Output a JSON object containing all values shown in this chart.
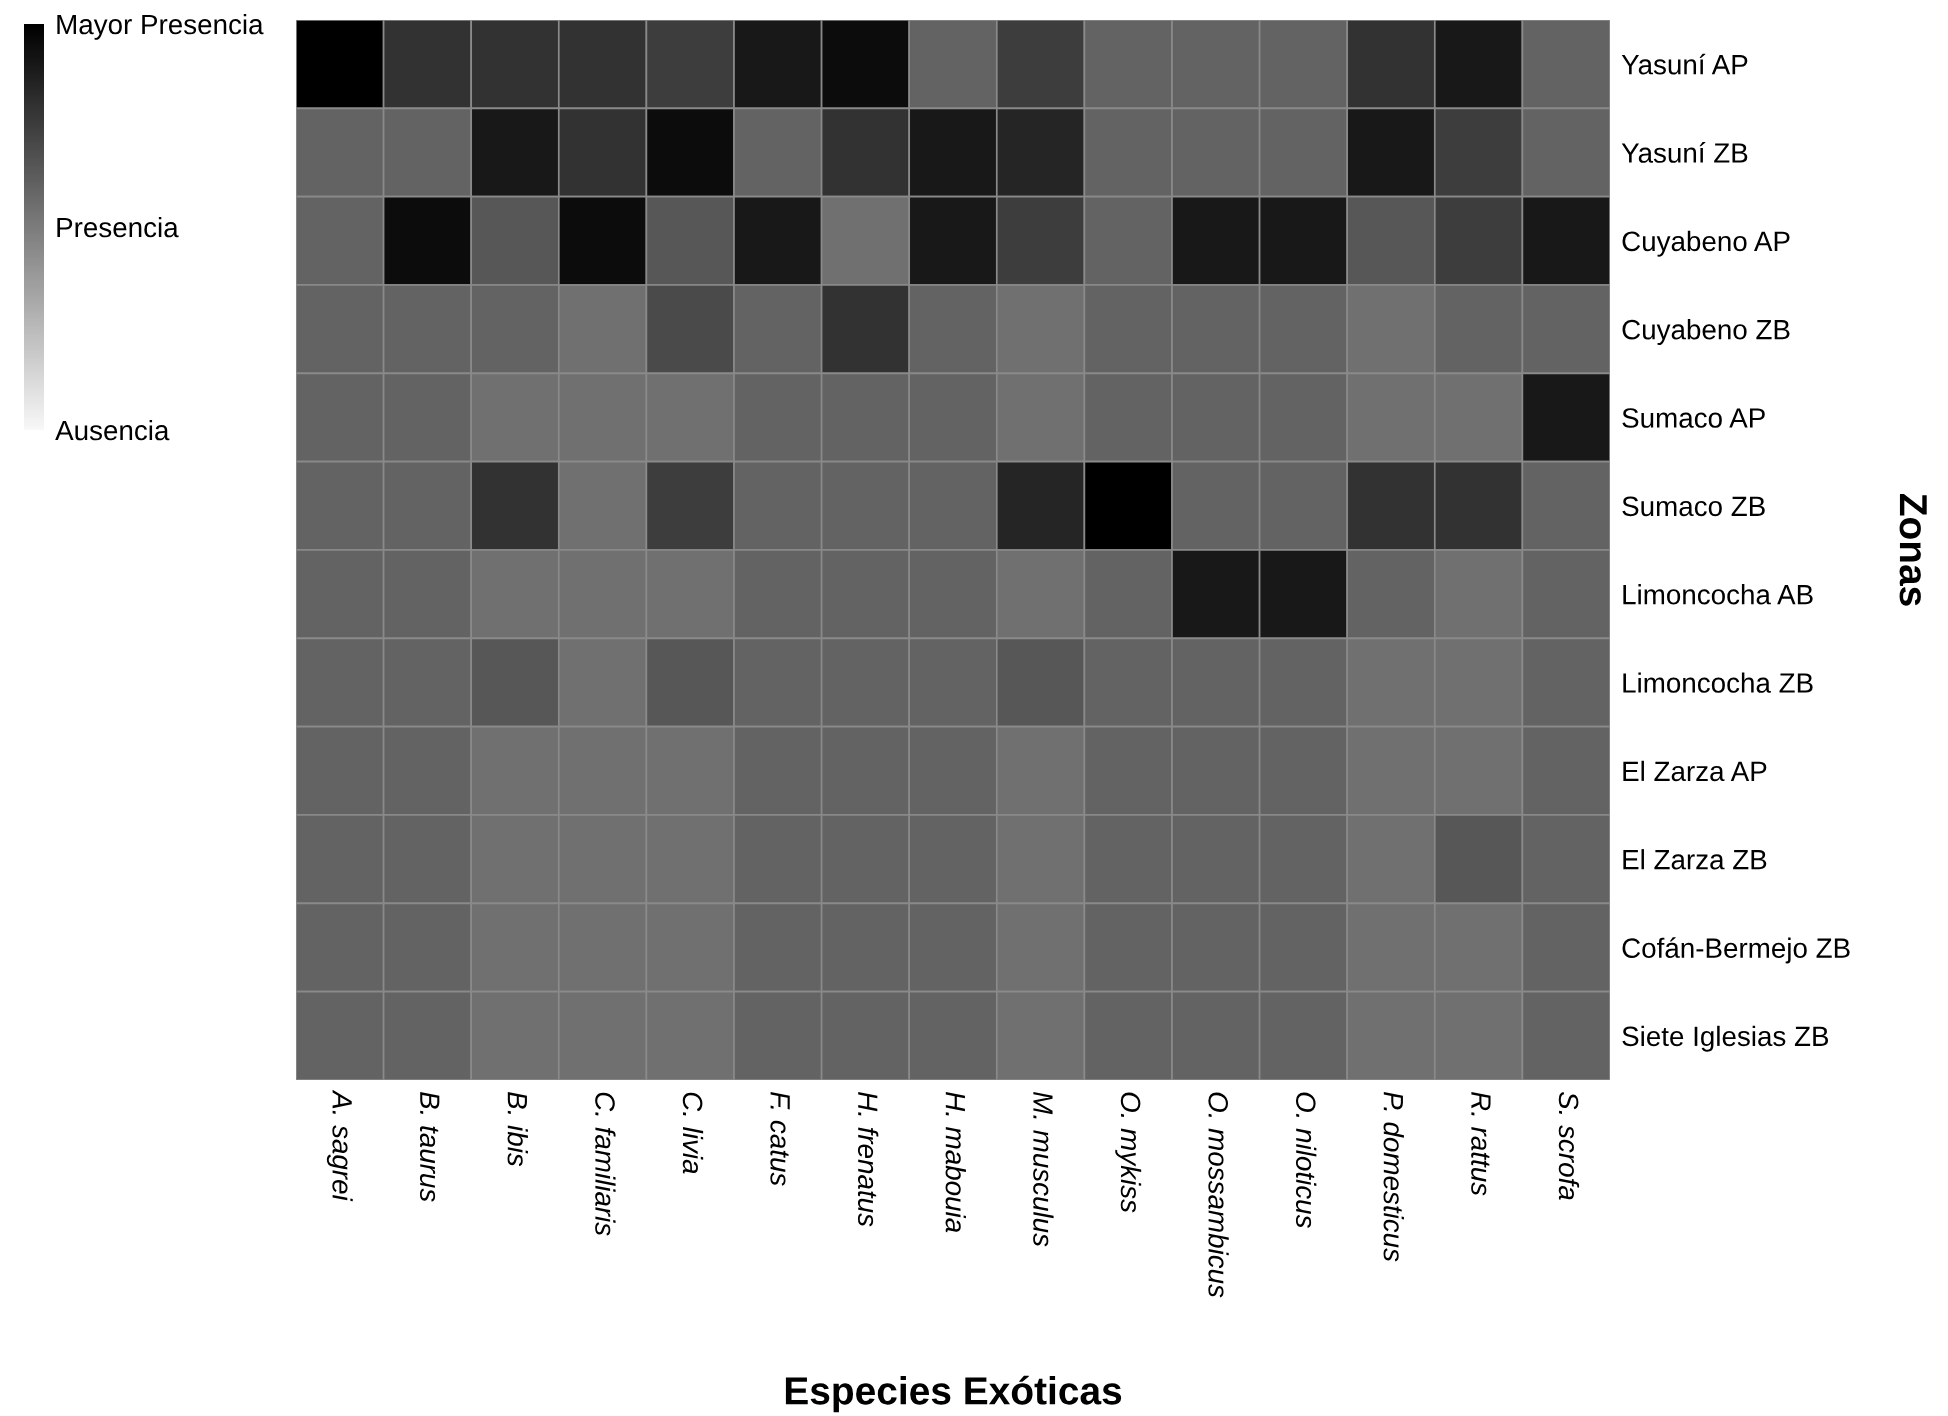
{
  "chart_data": {
    "type": "heatmap",
    "xlabel": "Especies Exóticas",
    "ylabel": "Zonas",
    "categories": [
      "A. sagrei",
      "B. taurus",
      "B. ibis",
      "C. familiaris",
      "C. livia",
      "F. catus",
      "H. frenatus",
      "H. mabouia",
      "M. musculus",
      "O. mykiss",
      "O. mossambicus",
      "O. niloticus",
      "P. domesticus",
      "R. rattus",
      "S. scrofa"
    ],
    "y_categories": [
      "Yasuní AP",
      "Yasuní ZB",
      "Cuyabeno AP",
      "Cuyabeno ZB",
      "Sumaco AP",
      "Sumaco ZB",
      "Limoncocha AB",
      "Limoncocha ZB",
      "El Zarza AP",
      "El Zarza ZB",
      "Cofán-Bermejo ZB",
      "Siete Iglesias ZB"
    ],
    "cells": [
      [
        2.0,
        1.6,
        1.6,
        1.6,
        1.5,
        1.8,
        1.9,
        1.2,
        1.5,
        1.2,
        1.2,
        1.2,
        1.6,
        1.8,
        1.2
      ],
      [
        1.2,
        1.2,
        1.8,
        1.6,
        1.9,
        1.2,
        1.6,
        1.8,
        1.7,
        1.2,
        1.2,
        1.2,
        1.8,
        1.5,
        1.2
      ],
      [
        1.2,
        1.9,
        1.3,
        1.9,
        1.3,
        1.8,
        1.1,
        1.8,
        1.5,
        1.2,
        1.8,
        1.8,
        1.3,
        1.5,
        1.8
      ],
      [
        1.2,
        1.2,
        1.2,
        1.1,
        1.4,
        1.2,
        1.6,
        1.2,
        1.1,
        1.2,
        1.2,
        1.2,
        1.1,
        1.2,
        1.2
      ],
      [
        1.2,
        1.2,
        1.1,
        1.1,
        1.1,
        1.2,
        1.2,
        1.2,
        1.1,
        1.2,
        1.2,
        1.2,
        1.1,
        1.1,
        1.8
      ],
      [
        1.2,
        1.2,
        1.6,
        1.1,
        1.5,
        1.2,
        1.2,
        1.2,
        1.7,
        2.0,
        1.2,
        1.2,
        1.6,
        1.6,
        1.2
      ],
      [
        1.2,
        1.2,
        1.1,
        1.1,
        1.1,
        1.2,
        1.2,
        1.2,
        1.1,
        1.2,
        1.8,
        1.8,
        1.2,
        1.1,
        1.2
      ],
      [
        1.2,
        1.2,
        1.3,
        1.1,
        1.3,
        1.2,
        1.2,
        1.2,
        1.3,
        1.2,
        1.2,
        1.2,
        1.1,
        1.1,
        1.2
      ],
      [
        1.2,
        1.2,
        1.1,
        1.1,
        1.1,
        1.2,
        1.2,
        1.2,
        1.1,
        1.2,
        1.2,
        1.2,
        1.1,
        1.1,
        1.2
      ],
      [
        1.2,
        1.2,
        1.1,
        1.1,
        1.1,
        1.2,
        1.2,
        1.2,
        1.1,
        1.2,
        1.2,
        1.2,
        1.1,
        1.3,
        1.2
      ],
      [
        1.2,
        1.2,
        1.1,
        1.1,
        1.1,
        1.2,
        1.2,
        1.2,
        1.1,
        1.2,
        1.2,
        1.2,
        1.1,
        1.1,
        1.2
      ],
      [
        1.2,
        1.2,
        1.1,
        1.1,
        1.1,
        1.2,
        1.2,
        1.2,
        1.1,
        1.2,
        1.2,
        1.2,
        1.1,
        1.1,
        1.2
      ]
    ],
    "clim": [
      0,
      2
    ],
    "cticks": [
      {
        "value": 0,
        "label": "Ausencia"
      },
      {
        "value": 1,
        "label": "Presencia"
      },
      {
        "value": 2,
        "label": "Mayor Presencia"
      }
    ]
  }
}
